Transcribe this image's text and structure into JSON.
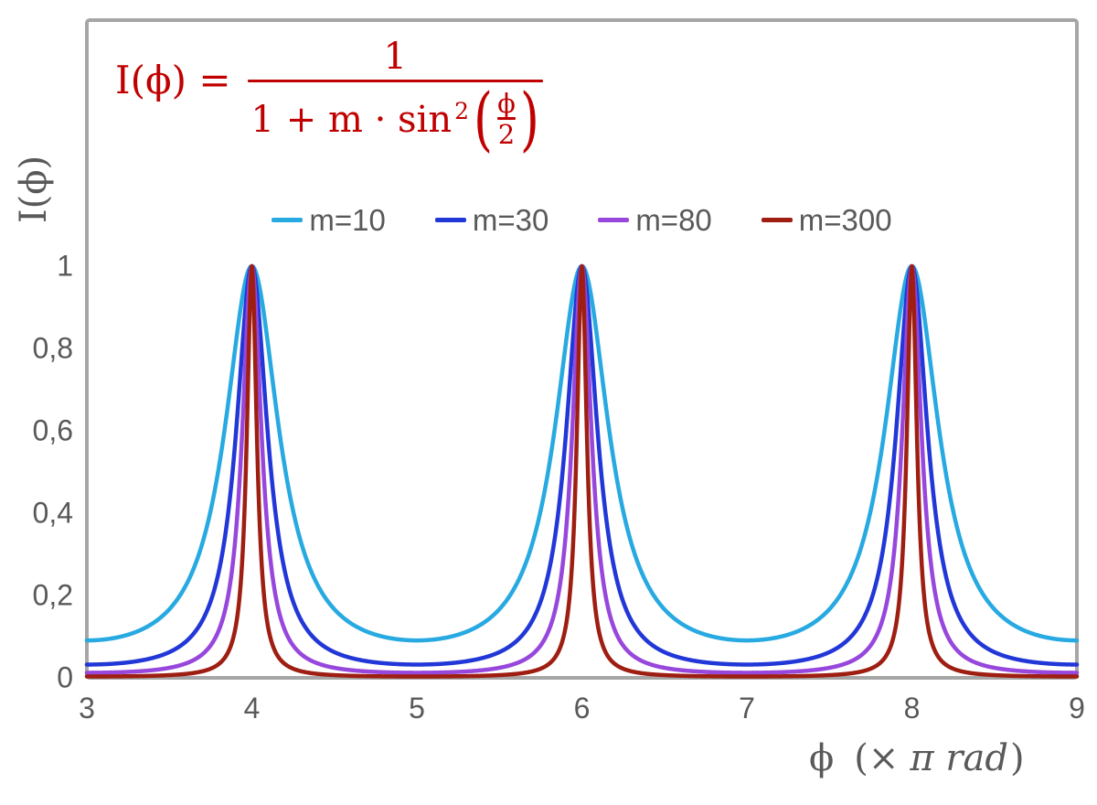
{
  "chart_data": {
    "type": "line",
    "title": "",
    "function": "I(phi) = 1 / (1 + m * sin^2(phi/2)), phi plotted in units of pi rad",
    "x_axis": {
      "label": "ϕ (× π rad)",
      "min": 3,
      "max": 9,
      "ticks": [
        "3",
        "4",
        "5",
        "6",
        "7",
        "8",
        "9"
      ]
    },
    "y_axis": {
      "label": "I(ϕ)",
      "min": 0,
      "max": 1,
      "ticks": [
        "0",
        "0,2",
        "0,4",
        "0,6",
        "0,8",
        "1"
      ]
    },
    "series": [
      {
        "name": "m=10",
        "m": 10,
        "color": "#27A9E1",
        "value_at_x3": 0.091
      },
      {
        "name": "m=30",
        "m": 30,
        "color": "#2237D7",
        "value_at_x3": 0.032
      },
      {
        "name": "m=80",
        "m": 80,
        "color": "#9747DC",
        "value_at_x3": 0.012
      },
      {
        "name": "m=300",
        "m": 300,
        "color": "#9E1E12",
        "value_at_x3": 0.003
      }
    ],
    "peaks_at_x": [
      4,
      6,
      8
    ],
    "peak_value": 1,
    "grid": "off",
    "legend_position": "top-center",
    "frame_color": "#A6A6A6",
    "text_color": "#595959",
    "plot_background": "#FFFFFF",
    "line_width": 4.5
  },
  "formula": {
    "color": "#C00000",
    "lhs": "I(ϕ) =",
    "numerator": "1",
    "denominator_main": "1 + m · sin",
    "denominator_sup": "2",
    "paren_open": "(",
    "paren_close": ")",
    "inner_numerator": "ϕ",
    "inner_denominator": "2"
  },
  "axis_titles": {
    "y": "I(ϕ)",
    "x_phi": "ϕ",
    "x_open": "(×",
    "x_italic": "π rad",
    "x_close": ")"
  }
}
